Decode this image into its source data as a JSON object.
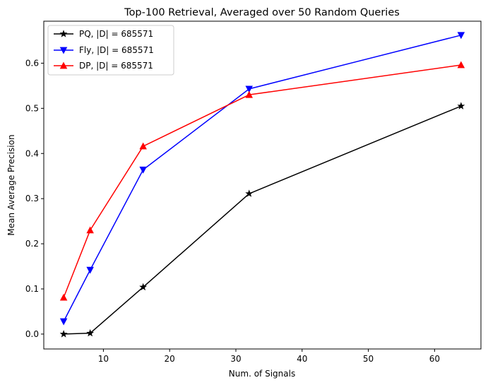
{
  "chart_data": {
    "type": "line",
    "title": "Top-100 Retrieval, Averaged over 50 Random Queries",
    "xlabel": "Num. of Signals",
    "ylabel": "Mean Average Precision",
    "xlim": [
      1.0,
      67.0
    ],
    "ylim": [
      -0.033,
      0.693
    ],
    "xticks": [
      10,
      20,
      30,
      40,
      50,
      60
    ],
    "yticks": [
      0.0,
      0.1,
      0.2,
      0.3,
      0.4,
      0.5,
      0.6
    ],
    "x": [
      4,
      8,
      16,
      32,
      64
    ],
    "legend_position": "top-left",
    "grid": false,
    "series": [
      {
        "name": "PQ, |D| = 685571",
        "color": "#000000",
        "marker": "star",
        "values": [
          0.0,
          0.002,
          0.104,
          0.311,
          0.505
        ]
      },
      {
        "name": "Fly, |D| = 685571",
        "color": "#0000ff",
        "marker": "triangle-down",
        "values": [
          0.028,
          0.142,
          0.364,
          0.543,
          0.662
        ]
      },
      {
        "name": "DP, |D| = 685571",
        "color": "#ff0000",
        "marker": "triangle-up",
        "values": [
          0.081,
          0.23,
          0.416,
          0.53,
          0.596
        ]
      }
    ]
  }
}
